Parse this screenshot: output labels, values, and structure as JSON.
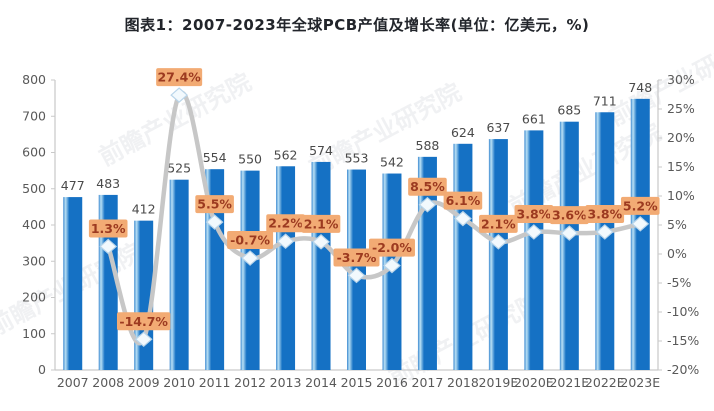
{
  "title": "图表1：2007-2023年全球PCB产值及增长率(单位：亿美元，%)",
  "watermark_text": "前瞻产业研究院",
  "colors": {
    "bar": "#1571c4",
    "bar_edge_highlight": "#b9e0f5",
    "line": "#c7c7c7",
    "marker_fill": "#f2f9fd",
    "marker_stroke": "#b9d5ea",
    "growth_label_bg": "#f2ab74",
    "growth_label_text": "#9c3a20",
    "axis_line": "#c9c9c9",
    "tick_text": "#595959",
    "bar_value_text": "#4a4a4a",
    "title_text": "#22252b"
  },
  "chart_data": {
    "type": "bar+line combo",
    "title": "图表1：2007-2023年全球PCB产值及增长率(单位：亿美元，%)",
    "categories": [
      "2007",
      "2008",
      "2009",
      "2010",
      "2011",
      "2012",
      "2013",
      "2014",
      "2015",
      "2016",
      "2017",
      "2018",
      "2019E",
      "2020E",
      "2021E",
      "2022E",
      "2023E"
    ],
    "series": [
      {
        "name": "全球PCB产值(亿美元)",
        "type": "bar",
        "axis": "left",
        "values": [
          477,
          483,
          412,
          525,
          554,
          550,
          562,
          574,
          553,
          542,
          588,
          624,
          637,
          661,
          685,
          711,
          748
        ],
        "value_labels": [
          "477",
          "483",
          "412",
          "525",
          "554",
          "550",
          "562",
          "574",
          "553",
          "542",
          "588",
          "624",
          "637",
          "661",
          "685",
          "711",
          "748"
        ]
      },
      {
        "name": "增长率(%)",
        "type": "line",
        "axis": "right",
        "values": [
          null,
          1.3,
          -14.7,
          27.4,
          5.5,
          -0.7,
          2.2,
          2.1,
          -3.7,
          -2.0,
          8.5,
          6.1,
          2.1,
          3.8,
          3.6,
          3.8,
          5.2
        ],
        "point_labels": [
          null,
          "1.3%",
          "-14.7%",
          "27.4%",
          "5.5%",
          "-0.7%",
          "2.2%",
          "2.1%",
          "-3.7%",
          "-2.0%",
          "8.5%",
          "6.1%",
          "2.1%",
          "3.8%",
          "3.6%",
          "3.8%",
          "5.2%"
        ]
      }
    ],
    "left_axis": {
      "min": 0,
      "max": 800,
      "step": 100,
      "ticks": [
        "0",
        "100",
        "200",
        "300",
        "400",
        "500",
        "600",
        "700",
        "800"
      ]
    },
    "right_axis": {
      "min": -20,
      "max": 30,
      "step": 5,
      "ticks": [
        "-20%",
        "-15%",
        "-10%",
        "-5%",
        "0%",
        "5%",
        "10%",
        "15%",
        "20%",
        "25%",
        "30%"
      ]
    },
    "grid": false,
    "legend": "none",
    "line_smooth": true,
    "marker_shape": "diamond"
  }
}
